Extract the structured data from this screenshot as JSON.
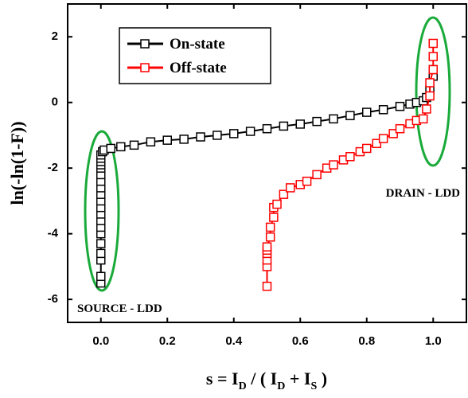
{
  "chart_data": {
    "type": "scatter",
    "xlabel_parts": [
      "s = I",
      "D",
      " / ( I",
      "D",
      " + I",
      "S",
      " )"
    ],
    "ylabel": "ln(-ln(1-F))",
    "xlim": [
      -0.1,
      1.1
    ],
    "ylim": [
      -6.7,
      3
    ],
    "xticks": [
      {
        "value": 0,
        "label": "0.0"
      },
      0.2,
      0.4,
      0.6,
      0.8,
      {
        "value": 1,
        "label": "1.0"
      }
    ],
    "yticks": [
      -6,
      -4,
      -2,
      0,
      2
    ],
    "legend": "upper left",
    "annotations": [
      "SOURCE - LDD",
      "DRAIN - LDD"
    ],
    "series": [
      {
        "name": "On-state",
        "color": "#000000",
        "x": [
          0,
          0,
          0,
          0,
          0,
          0,
          0,
          0,
          0,
          0,
          0,
          0,
          0,
          0,
          0,
          0,
          0,
          0,
          0,
          0,
          0.005,
          0.01,
          0.03,
          0.06,
          0.1,
          0.15,
          0.2,
          0.25,
          0.3,
          0.35,
          0.4,
          0.45,
          0.5,
          0.55,
          0.6,
          0.65,
          0.7,
          0.75,
          0.8,
          0.85,
          0.9,
          0.93,
          0.95,
          0.97,
          0.98,
          0.99,
          1.0,
          1.0
        ],
        "values": [
          -5.5,
          -5.3,
          -4.8,
          -4.6,
          -4.3,
          -4.0,
          -3.8,
          -3.6,
          -3.4,
          -3.2,
          -3.0,
          -2.8,
          -2.6,
          -2.4,
          -2.2,
          -2.0,
          -1.9,
          -1.8,
          -1.7,
          -1.6,
          -1.5,
          -1.45,
          -1.4,
          -1.35,
          -1.3,
          -1.2,
          -1.15,
          -1.12,
          -1.05,
          -1.0,
          -0.95,
          -0.88,
          -0.8,
          -0.72,
          -0.66,
          -0.58,
          -0.5,
          -0.4,
          -0.3,
          -0.22,
          -0.12,
          -0.05,
          0.0,
          0.05,
          0.15,
          0.4,
          0.8,
          1.0
        ]
      },
      {
        "name": "Off-state",
        "color": "#ff0000",
        "x": [
          0.5,
          0.5,
          0.5,
          0.5,
          0.5,
          0.5,
          0.51,
          0.51,
          0.52,
          0.52,
          0.53,
          0.55,
          0.57,
          0.6,
          0.62,
          0.65,
          0.68,
          0.7,
          0.73,
          0.75,
          0.78,
          0.8,
          0.83,
          0.85,
          0.88,
          0.9,
          0.93,
          0.95,
          0.97,
          0.98,
          0.99,
          0.99,
          1.0,
          1.0,
          1.0
        ],
        "values": [
          -5.6,
          -5.0,
          -4.8,
          -4.6,
          -4.5,
          -4.4,
          -4.1,
          -3.8,
          -3.5,
          -3.2,
          -3.1,
          -2.8,
          -2.6,
          -2.5,
          -2.4,
          -2.2,
          -2.0,
          -1.9,
          -1.75,
          -1.65,
          -1.5,
          -1.4,
          -1.25,
          -1.1,
          -0.95,
          -0.8,
          -0.65,
          -0.55,
          -0.5,
          -0.2,
          0.2,
          0.6,
          1.0,
          1.4,
          1.8
        ]
      }
    ]
  }
}
